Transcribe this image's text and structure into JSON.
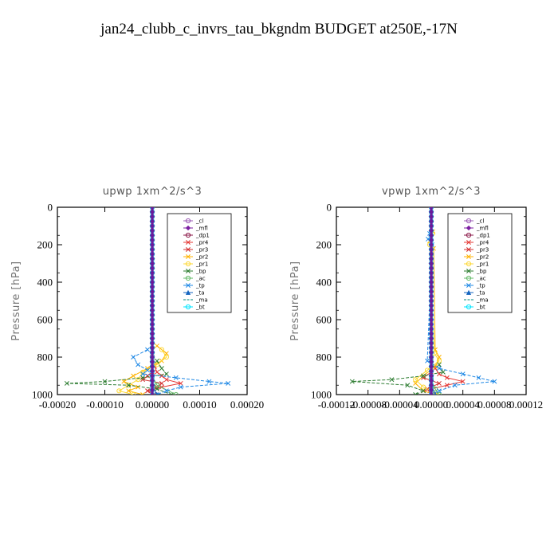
{
  "title": "jan24_clubb_c_invrs_tau_bkgndm  BUDGET at250E,-17N",
  "chart_data": [
    {
      "type": "line",
      "title": "upwp   1xm^2/s^3",
      "ylabel": "Pressure [hPa]",
      "xlabel": "",
      "ylim": [
        1000,
        0
      ],
      "xlim": [
        -0.0002,
        0.0002
      ],
      "yticks": [
        "0",
        "200",
        "400",
        "600",
        "800",
        "1000"
      ],
      "ytick_values": [
        0,
        200,
        400,
        600,
        800,
        1000
      ],
      "xticks": [
        "-0.00020",
        "-0.00010",
        "0.00000",
        "0.00010",
        "0.00020"
      ],
      "xtick_values": [
        -0.0002,
        -0.0001,
        0,
        0.0001,
        0.0002
      ],
      "legend": [
        "_cl",
        "_mfl",
        "_dp1",
        "_pr4",
        "_pr3",
        "_pr2",
        "_pr1",
        "_bp",
        "_ac",
        "_tp",
        "_ta",
        "_ma",
        "_bt"
      ],
      "series": [
        {
          "name": "_cl",
          "color": "#9b59b6",
          "marker": "circle",
          "y": [
            0,
            1000
          ],
          "x": [
            0,
            0
          ]
        },
        {
          "name": "_mfl",
          "color": "#7b1fa2",
          "marker": "diamond",
          "y": [
            0,
            1000
          ],
          "x": [
            0,
            0
          ]
        },
        {
          "name": "_dp1",
          "color": "#8b1a4a",
          "marker": "circle",
          "y": [
            0,
            1000
          ],
          "x": [
            0,
            0
          ]
        },
        {
          "name": "_pr4",
          "color": "#e53935",
          "marker": "x",
          "y": [
            800,
            850,
            880,
            900,
            920,
            940,
            960,
            980,
            1000
          ],
          "x": [
            0,
            5e-06,
            1e-05,
            2e-05,
            3e-05,
            6e-05,
            2e-05,
            -1e-05,
            1e-05
          ]
        },
        {
          "name": "_pr3",
          "color": "#d32f2f",
          "marker": "x",
          "y": [
            880,
            900,
            920,
            940,
            960,
            980,
            1000
          ],
          "x": [
            0,
            -1e-05,
            -2e-05,
            2e-05,
            1e-05,
            -1e-05,
            5e-06
          ]
        },
        {
          "name": "_pr2",
          "color": "#ffb300",
          "marker": "x",
          "y": [
            740,
            780,
            820,
            860,
            900,
            930,
            960,
            980,
            1000
          ],
          "x": [
            1e-05,
            3e-05,
            2e-05,
            -1e-05,
            -4e-05,
            -6e-05,
            -3e-05,
            -5e-05,
            -2e-05
          ]
        },
        {
          "name": "_pr1",
          "color": "#fdd835",
          "marker": "circle",
          "y": [
            760,
            800,
            840,
            880,
            920,
            950,
            980,
            1000
          ],
          "x": [
            2e-05,
            3e-05,
            1e-05,
            -2e-05,
            -3e-05,
            -5e-05,
            -7e-05,
            -4e-05
          ]
        },
        {
          "name": "_bp",
          "color": "#2e7d32",
          "marker": "x",
          "y": [
            820,
            860,
            890,
            910,
            930,
            940,
            950,
            970,
            1000
          ],
          "x": [
            1e-05,
            2e-05,
            3e-05,
            -2e-05,
            -0.0001,
            -0.00018,
            -5e-05,
            1e-05,
            4e-05
          ]
        },
        {
          "name": "_ac",
          "color": "#66bb6a",
          "marker": "circle",
          "y": [
            900,
            950,
            1000
          ],
          "x": [
            0,
            1e-05,
            5e-05
          ]
        },
        {
          "name": "_tp",
          "color": "#1e88e5",
          "marker": "x",
          "y": [
            760,
            800,
            840,
            870,
            890,
            910,
            930,
            940,
            960,
            980,
            1000
          ],
          "x": [
            -1e-05,
            -4e-05,
            -3e-05,
            -1e-05,
            -2e-05,
            5e-05,
            0.00012,
            0.00016,
            6e-05,
            3e-05,
            1e-05
          ]
        },
        {
          "name": "_ta",
          "color": "#1565c0",
          "marker": "triangle",
          "y": [
            900,
            950,
            1000
          ],
          "x": [
            0,
            0,
            1e-05
          ]
        },
        {
          "name": "_ma",
          "color": "#00897b",
          "marker": "none",
          "y": [
            0,
            1000
          ],
          "x": [
            0,
            0
          ]
        },
        {
          "name": "_bt",
          "color": "#00e5ff",
          "marker": "circle",
          "y": [
            0,
            1000
          ],
          "x": [
            0,
            0
          ]
        }
      ]
    },
    {
      "type": "line",
      "title": "vpwp   1xm^2/s^3",
      "ylabel": "Pressure [hPa]",
      "xlabel": "",
      "ylim": [
        1000,
        0
      ],
      "xlim": [
        -0.00012,
        0.00012
      ],
      "yticks": [
        "0",
        "200",
        "400",
        "600",
        "800",
        "1000"
      ],
      "ytick_values": [
        0,
        200,
        400,
        600,
        800,
        1000
      ],
      "xticks": [
        "-0.00012",
        "-0.00008",
        "-0.00004",
        "0.00000",
        "0.00004",
        "0.00008",
        "0.00012"
      ],
      "xtick_values": [
        -0.00012,
        -8e-05,
        -4e-05,
        0,
        4e-05,
        8e-05,
        0.00012
      ],
      "legend": [
        "_cl",
        "_mfl",
        "_dp1",
        "_pr4",
        "_pr3",
        "_pr2",
        "_pr1",
        "_bp",
        "_ac",
        "_tp",
        "_ta",
        "_ma",
        "_bt"
      ],
      "series": [
        {
          "name": "_cl",
          "color": "#9b59b6",
          "marker": "circle",
          "y": [
            0,
            1000
          ],
          "x": [
            0,
            0
          ]
        },
        {
          "name": "_mfl",
          "color": "#7b1fa2",
          "marker": "diamond",
          "y": [
            0,
            1000
          ],
          "x": [
            0,
            0
          ]
        },
        {
          "name": "_dp1",
          "color": "#8b1a4a",
          "marker": "circle",
          "y": [
            0,
            1000
          ],
          "x": [
            0,
            0
          ]
        },
        {
          "name": "_pr4",
          "color": "#e53935",
          "marker": "x",
          "y": [
            820,
            860,
            890,
            910,
            930,
            950,
            980,
            1000
          ],
          "x": [
            0,
            5e-06,
            1e-05,
            2e-05,
            4e-05,
            2e-05,
            -1e-05,
            5e-06
          ]
        },
        {
          "name": "_pr3",
          "color": "#d32f2f",
          "marker": "x",
          "y": [
            880,
            910,
            940,
            970,
            1000
          ],
          "x": [
            0,
            -1e-05,
            1e-05,
            -5e-06,
            0
          ]
        },
        {
          "name": "_pr2",
          "color": "#ffb300",
          "marker": "x",
          "y": [
            130,
            180,
            220,
            760,
            800,
            850,
            900,
            940,
            980,
            1000
          ],
          "x": [
            2e-06,
            -2e-06,
            3e-06,
            5e-06,
            1e-05,
            5e-06,
            -1e-05,
            -2e-05,
            -1e-05,
            5e-06
          ]
        },
        {
          "name": "_pr1",
          "color": "#fdd835",
          "marker": "circle",
          "y": [
            140,
            200,
            780,
            820,
            870,
            920,
            960,
            1000
          ],
          "x": [
            2e-06,
            -2e-06,
            4e-06,
            1e-05,
            -5e-06,
            -2e-05,
            -1e-05,
            1e-05
          ]
        },
        {
          "name": "_bp",
          "color": "#2e7d32",
          "marker": "x",
          "y": [
            840,
            880,
            900,
            920,
            930,
            950,
            980,
            1000
          ],
          "x": [
            1e-05,
            1.5e-05,
            -1e-05,
            -5e-05,
            -0.0001,
            -3e-05,
            -1e-05,
            -2e-05
          ]
        },
        {
          "name": "_ac",
          "color": "#66bb6a",
          "marker": "circle",
          "y": [
            920,
            970,
            1000
          ],
          "x": [
            0,
            5e-06,
            1e-05
          ]
        },
        {
          "name": "_tp",
          "color": "#1e88e5",
          "marker": "x",
          "y": [
            140,
            170,
            200,
            820,
            860,
            890,
            910,
            930,
            950,
            980,
            1000
          ],
          "x": [
            -2e-06,
            -4e-06,
            1e-06,
            -5e-06,
            1e-05,
            4e-05,
            6e-05,
            8e-05,
            3e-05,
            1e-05,
            0
          ]
        },
        {
          "name": "_ta",
          "color": "#1565c0",
          "marker": "triangle",
          "y": [
            900,
            950,
            1000
          ],
          "x": [
            0,
            0,
            5e-06
          ]
        },
        {
          "name": "_ma",
          "color": "#00897b",
          "marker": "none",
          "y": [
            0,
            1000
          ],
          "x": [
            0,
            0
          ]
        },
        {
          "name": "_bt",
          "color": "#00e5ff",
          "marker": "circle",
          "y": [
            0,
            1000
          ],
          "x": [
            0,
            0
          ]
        }
      ]
    }
  ]
}
